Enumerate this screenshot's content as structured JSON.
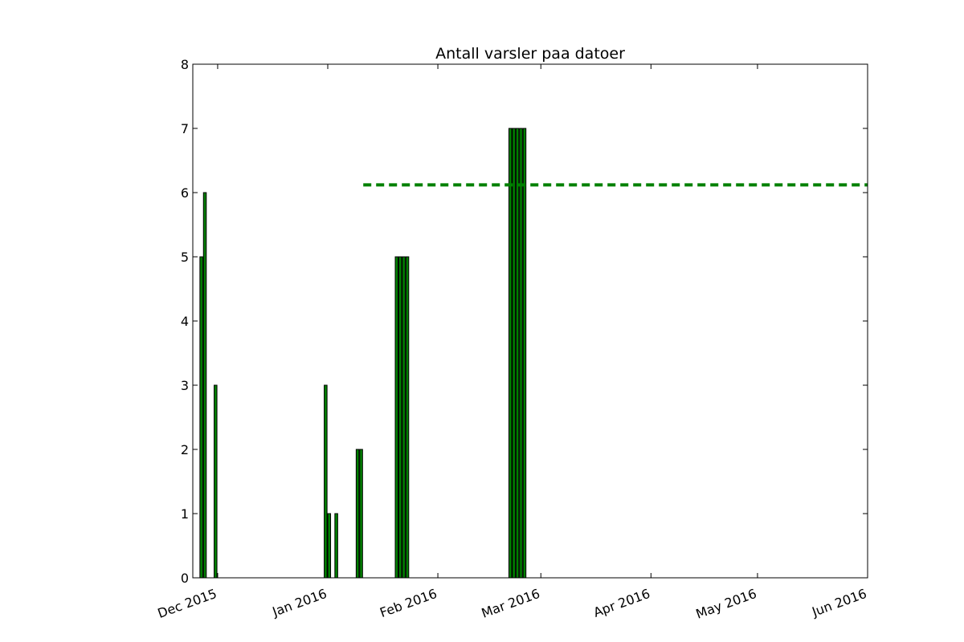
{
  "chart_data": {
    "type": "bar",
    "title": "Antall varsler paa datoer",
    "xlabel": "",
    "ylabel": "",
    "x_axis": {
      "type": "date",
      "range": [
        "2015-11-24",
        "2016-06-01"
      ],
      "ticks": [
        {
          "date": "2015-12-01",
          "label": "Dec 2015"
        },
        {
          "date": "2016-01-01",
          "label": "Jan 2016"
        },
        {
          "date": "2016-02-01",
          "label": "Feb 2016"
        },
        {
          "date": "2016-03-01",
          "label": "Mar 2016"
        },
        {
          "date": "2016-04-01",
          "label": "Apr 2016"
        },
        {
          "date": "2016-05-01",
          "label": "May 2016"
        },
        {
          "date": "2016-06-01",
          "label": "Jun 2016"
        }
      ],
      "tick_label_rotation": "slanted"
    },
    "y_axis": {
      "range": [
        0,
        8
      ],
      "ticks": [
        "0",
        "1",
        "2",
        "3",
        "4",
        "5",
        "6",
        "7",
        "8"
      ]
    },
    "grid": false,
    "bars": [
      {
        "date": "2015-11-26",
        "value": 5
      },
      {
        "date": "2015-11-27",
        "value": 6
      },
      {
        "date": "2015-11-30",
        "value": 3
      },
      {
        "date": "2015-12-31",
        "value": 3
      },
      {
        "date": "2016-01-01",
        "value": 1
      },
      {
        "date": "2016-01-03",
        "value": 1
      },
      {
        "date": "2016-01-09",
        "value": 2
      },
      {
        "date": "2016-01-10",
        "value": 2
      },
      {
        "date": "2016-01-20",
        "value": 5
      },
      {
        "date": "2016-01-21",
        "value": 5
      },
      {
        "date": "2016-01-22",
        "value": 5
      },
      {
        "date": "2016-01-23",
        "value": 5
      },
      {
        "date": "2016-02-21",
        "value": 7
      },
      {
        "date": "2016-02-22",
        "value": 7
      },
      {
        "date": "2016-02-23",
        "value": 7
      },
      {
        "date": "2016-02-24",
        "value": 7
      },
      {
        "date": "2016-02-25",
        "value": 7
      }
    ],
    "reference_line": {
      "style": "dashed",
      "value": 6.12,
      "x_start": "2016-01-11",
      "x_end": "2016-06-01"
    },
    "colors": {
      "bar_fill": "#007f00",
      "bar_edge": "#000000",
      "reference_line": "#008000"
    }
  }
}
